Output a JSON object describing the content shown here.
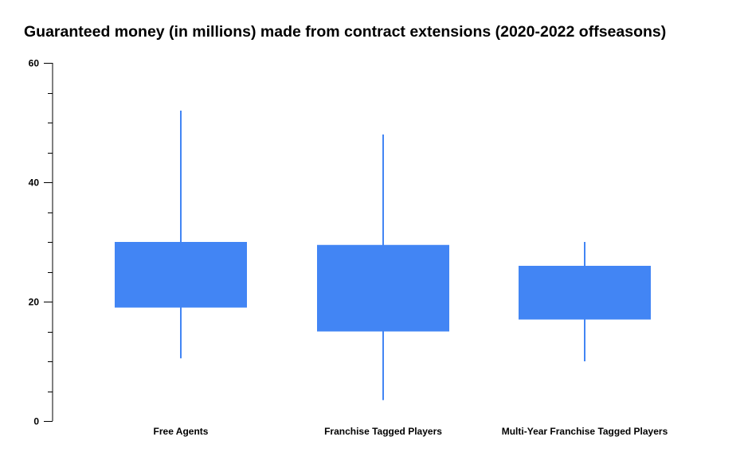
{
  "chart_data": {
    "type": "candlestick",
    "title": "Guaranteed money (in millions) made from contract extensions (2020-2022 offseasons)",
    "xlabel": "",
    "ylabel": "",
    "ylim": [
      0,
      60
    ],
    "yticks": [
      0,
      20,
      40,
      60
    ],
    "grid": false,
    "legend": "none",
    "colors": {
      "box": "#4285f4",
      "axis": "#000000"
    },
    "categories": [
      "Free Agents",
      "Franchise Tagged Players",
      "Multi-Year Franchise Tagged Players"
    ],
    "series": [
      {
        "low": [
          10.5,
          3.5,
          10
        ],
        "box_low": [
          19,
          15,
          17
        ],
        "box_high": [
          30,
          29.5,
          26
        ],
        "high": [
          52,
          48,
          30
        ]
      }
    ]
  }
}
